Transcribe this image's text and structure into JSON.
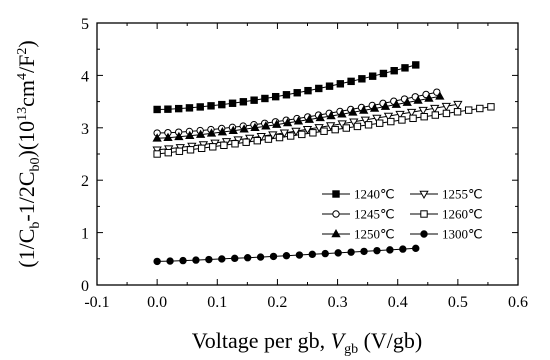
{
  "chart_data": {
    "type": "scatter",
    "xlabel": {
      "main": "Voltage per gb, ",
      "var": "V",
      "sub": "gb",
      "unit": " (V/gb)"
    },
    "ylabel": {
      "p1": "(1/C",
      "s1": "b",
      "p2": "-1/2C",
      "s2": "b0",
      "p3": ")(10",
      "sup1": "13",
      "p4": "cm",
      "sup2": "4",
      "p5": "/F",
      "sup3": "2",
      "p6": ")"
    },
    "xlim": [
      -0.1,
      0.6
    ],
    "ylim": [
      0,
      5
    ],
    "xticks": [
      "-0.1",
      "0.0",
      "0.1",
      "0.2",
      "0.3",
      "0.4",
      "0.5",
      "0.6"
    ],
    "yticks": [
      "0",
      "1",
      "2",
      "3",
      "4",
      "5"
    ],
    "legend_position": "right-middle",
    "series": [
      {
        "name": "1240℃",
        "marker": "square-filled",
        "x0": 0.0,
        "x1": 0.43,
        "y0": 3.35,
        "y1": 4.2,
        "curve": 1.6,
        "n": 25
      },
      {
        "name": "1245℃",
        "marker": "circle-open",
        "x0": 0.0,
        "x1": 0.465,
        "y0": 2.9,
        "y1": 3.68,
        "curve": 1.5,
        "n": 27
      },
      {
        "name": "1250℃",
        "marker": "triangle-filled",
        "x0": 0.0,
        "x1": 0.47,
        "y0": 2.8,
        "y1": 3.6,
        "curve": 1.3,
        "n": 27
      },
      {
        "name": "1255℃",
        "marker": "triangle-down-open",
        "x0": 0.0,
        "x1": 0.5,
        "y0": 2.58,
        "y1": 3.45,
        "curve": 1.15,
        "n": 27
      },
      {
        "name": "1260℃",
        "marker": "square-open",
        "x0": 0.0,
        "x1": 0.555,
        "y0": 2.5,
        "y1": 3.4,
        "curve": 1.05,
        "n": 31
      },
      {
        "name": "1300℃",
        "marker": "circle-filled",
        "x0": 0.0,
        "x1": 0.43,
        "y0": 0.45,
        "y1": 0.7,
        "curve": 1.2,
        "n": 21
      }
    ],
    "legend_layout": [
      [
        0,
        3
      ],
      [
        1,
        4
      ],
      [
        2,
        5
      ]
    ]
  }
}
